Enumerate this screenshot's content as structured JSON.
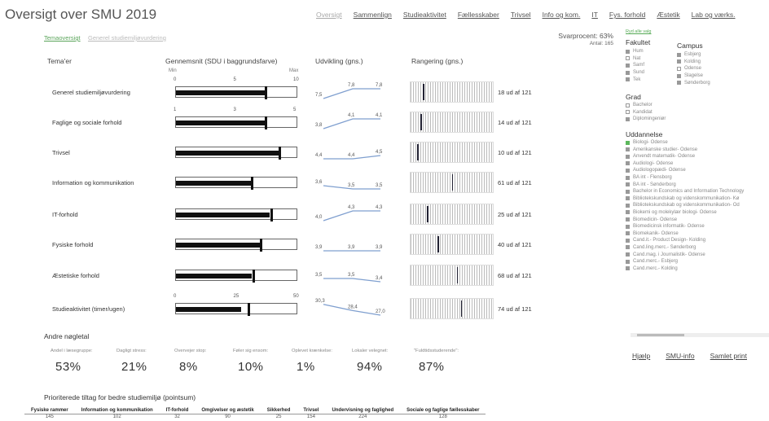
{
  "title": "Oversigt over SMU 2019",
  "nav": [
    "Oversigt",
    "Sammenlign",
    "Studieaktivitet",
    "Fællesskaber",
    "Trivsel",
    "Info og kom.",
    "IT",
    "Fys. forhold",
    "Æstetik",
    "Lab og værks."
  ],
  "subtabs": [
    "Temaoversigt",
    "Generel studiemiljøvurdering"
  ],
  "svarprocent": "Svarprocent: 63%",
  "antal": "Antal: 165",
  "headers": {
    "tema": "Tema'er",
    "gns": "Gennemsnit (SDU i baggrundsfarve)",
    "udv": "Udvikling (gns.)",
    "rang": "Rangering (gns.)"
  },
  "minmax": {
    "min": "Min",
    "max": "Max"
  },
  "themes": [
    {
      "name": "Generel studiemiljøvurdering",
      "axis": [
        "0",
        "5",
        "10"
      ],
      "fill": 0.75,
      "mark": 0.74,
      "dev": [
        "7,5",
        "7,8",
        "7,8"
      ],
      "devy": [
        0.0,
        0.3,
        0.3
      ],
      "rank": "18 ud af 121",
      "rankpos": 0.15
    },
    {
      "name": "Faglige og sociale forhold",
      "axis": [
        "1",
        "3",
        "5"
      ],
      "fill": 0.76,
      "mark": 0.74,
      "dev": [
        "3,8",
        "4,1",
        "4,1"
      ],
      "devy": [
        0.0,
        0.3,
        0.3
      ],
      "rank": "14 ud af 121",
      "rankpos": 0.12
    },
    {
      "name": "Trivsel",
      "axis": [],
      "fill": 0.85,
      "mark": 0.86,
      "dev": [
        "4,4",
        "4,4",
        "4,5"
      ],
      "devy": [
        0.0,
        0.0,
        0.1
      ],
      "rank": "10 ud af 121",
      "rankpos": 0.08
    },
    {
      "name": "Information og kommunikation",
      "axis": [],
      "fill": 0.63,
      "mark": 0.63,
      "dev": [
        "3,6",
        "3,5",
        "3,5"
      ],
      "devy": [
        0.1,
        0.0,
        0.0
      ],
      "rank": "61 ud af 121",
      "rankpos": 0.5
    },
    {
      "name": "IT-forhold",
      "axis": [],
      "fill": 0.78,
      "mark": 0.79,
      "dev": [
        "4,0",
        "4,3",
        "4,3"
      ],
      "devy": [
        0.0,
        0.3,
        0.3
      ],
      "rank": "25 ud af 121",
      "rankpos": 0.2
    },
    {
      "name": "Fysiske forhold",
      "axis": [],
      "fill": 0.71,
      "mark": 0.7,
      "dev": [
        "3,9",
        "3,9",
        "3,9"
      ],
      "devy": [
        0.0,
        0.0,
        0.0
      ],
      "rank": "40 ud af 121",
      "rankpos": 0.33
    },
    {
      "name": "Æstetiske forhold",
      "axis": [],
      "fill": 0.63,
      "mark": 0.64,
      "dev": [
        "3,5",
        "3,5",
        "3,4"
      ],
      "devy": [
        0.1,
        0.1,
        0.0
      ],
      "rank": "68 ud af 121",
      "rankpos": 0.56
    },
    {
      "name": "Studieaktivitet (timer/ugen)",
      "axis": [
        "0",
        "25",
        "50"
      ],
      "fill": 0.54,
      "mark": 0.6,
      "dev": [
        "30,3",
        "28,4",
        "27,0"
      ],
      "devy": [
        0.33,
        0.14,
        0.0
      ],
      "rank": "74 ud af 121",
      "rankpos": 0.61
    }
  ],
  "andre": "Andre nøgletal",
  "kpis": [
    {
      "label": "Andel i læsegruppe:",
      "value": "53%"
    },
    {
      "label": "Dagligt stress:",
      "value": "21%"
    },
    {
      "label": "Overvejer stop:",
      "value": "8%"
    },
    {
      "label": "Føler sig ensom:",
      "value": "10%"
    },
    {
      "label": "Oplevet krænkelse:",
      "value": "1%"
    },
    {
      "label": "Lokaler velegnet:",
      "value": "94%"
    },
    {
      "label": "\"Fuldtidsstuderende\":",
      "value": "87%"
    }
  ],
  "prior_title": "Prioriterede tiltag for bedre studiemiljø (pointsum)",
  "prior_headers": [
    "Fysiske rammer",
    "Information og kommunikation",
    "IT-forhold",
    "Omgivelser og æstetik",
    "Sikkerhed",
    "Trivsel",
    "Undervisning og faglighed",
    "Sociale og faglige fællesskaber"
  ],
  "prior_values": [
    "145",
    "102",
    "32",
    "90",
    "25",
    "154",
    "224",
    "128"
  ],
  "side": {
    "nulstil": "Ryd alle valg",
    "fakultet_title": "Fakultet",
    "fakultet": [
      {
        "label": "Hum",
        "style": "filled"
      },
      {
        "label": "Nat",
        "style": "hollow"
      },
      {
        "label": "Samf",
        "style": "filled"
      },
      {
        "label": "Sund",
        "style": "filled"
      },
      {
        "label": "Tek",
        "style": "filled"
      }
    ],
    "campus_title": "Campus",
    "campus": [
      {
        "label": "Esbjerg",
        "style": "filled"
      },
      {
        "label": "Kolding",
        "style": "filled"
      },
      {
        "label": "Odense",
        "style": "hollow"
      },
      {
        "label": "Slagelse",
        "style": "filled"
      },
      {
        "label": "Sønderborg",
        "style": "filled"
      }
    ],
    "grad_title": "Grad",
    "grad": [
      {
        "label": "Bachelor",
        "style": "hollow"
      },
      {
        "label": "Kandidat",
        "style": "hollow"
      },
      {
        "label": "Diplomingeniør",
        "style": "filled"
      }
    ],
    "udd_title": "Uddannelse",
    "udd": [
      "Biologi- Odense",
      "Amerikanske studier- Odense",
      "Anvendt matematik- Odense",
      "Audiologi- Odense",
      "Audiologopædi- Odense",
      "BA int - Flensborg",
      "BA int - Sønderborg",
      "Bachelor in Economics and Information Technology",
      "Bibliotekskundskab og videnskommunikation- Kø",
      "Bibliotekskundskab og videnskommunikation- Od",
      "Biokemi og molekylær biologi- Odense",
      "Biomedicin- Odense",
      "Biomedicinsk informatik- Odense",
      "Biomekanik- Odense",
      "Cand.it.- Product Design- Kolding",
      "Cand.ling.merc.- Sønderborg",
      "Cand.mag. i Journalistik- Odense",
      "Cand.merc.- Esbjerg",
      "Cand.merc.- Kolding"
    ]
  },
  "bottomlinks": [
    "Hjælp",
    "SMU-info",
    "Samlet print"
  ],
  "colors": {
    "accent": "#5cb85c",
    "line": "#7f9fcf",
    "bar": "#111111"
  }
}
